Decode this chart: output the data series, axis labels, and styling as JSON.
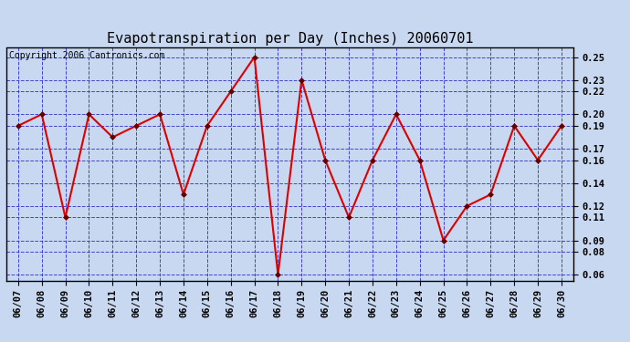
{
  "title": "Evapotranspiration per Day (Inches) 20060701",
  "copyright_text": "Copyright 2006 Cantronics.com",
  "dates": [
    "06/07",
    "06/08",
    "06/09",
    "06/10",
    "06/11",
    "06/12",
    "06/13",
    "06/14",
    "06/15",
    "06/16",
    "06/17",
    "06/18",
    "06/19",
    "06/20",
    "06/21",
    "06/22",
    "06/23",
    "06/24",
    "06/25",
    "06/26",
    "06/27",
    "06/28",
    "06/29",
    "06/30"
  ],
  "values": [
    0.19,
    0.2,
    0.11,
    0.2,
    0.18,
    0.19,
    0.2,
    0.13,
    0.19,
    0.22,
    0.25,
    0.06,
    0.23,
    0.16,
    0.11,
    0.16,
    0.2,
    0.16,
    0.09,
    0.12,
    0.13,
    0.19,
    0.16,
    0.19
  ],
  "ylim_low": 0.055,
  "ylim_high": 0.258,
  "yticks": [
    0.06,
    0.08,
    0.09,
    0.11,
    0.12,
    0.14,
    0.16,
    0.17,
    0.19,
    0.2,
    0.22,
    0.23,
    0.25
  ],
  "line_color": "#dd0000",
  "marker_color": "#660000",
  "bg_color": "#c8d8f0",
  "plot_bg_color": "#c8d8f0",
  "grid_color": "#3333cc",
  "title_fontsize": 11,
  "copyright_fontsize": 7,
  "tick_fontsize": 7.5,
  "tick_fontweight": "bold"
}
